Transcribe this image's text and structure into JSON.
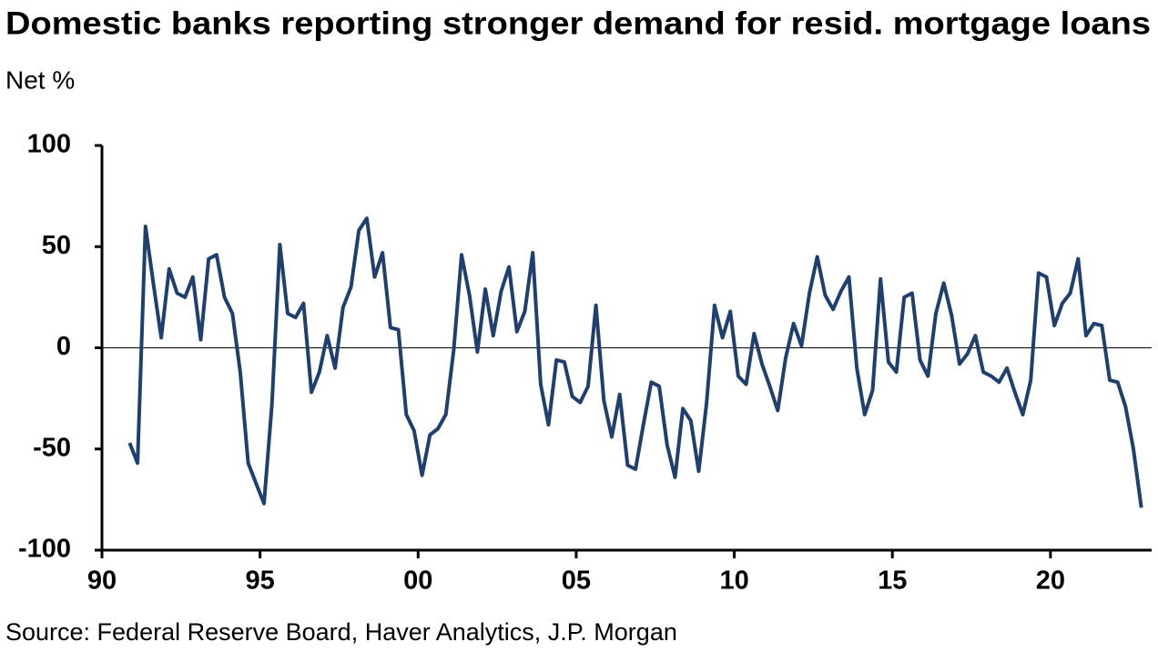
{
  "chart_data": {
    "type": "line",
    "title": "Domestic banks reporting stronger demand for resid. mortgage loans",
    "subtitle": "Net %",
    "source": "Source: Federal Reserve Board, Haver Analytics, J.P. Morgan",
    "x": [
      1990.875,
      1991.125,
      1991.375,
      1991.625,
      1991.875,
      1992.125,
      1992.375,
      1992.625,
      1992.875,
      1993.125,
      1993.375,
      1993.625,
      1993.875,
      1994.125,
      1994.375,
      1994.625,
      1994.875,
      1995.125,
      1995.375,
      1995.625,
      1995.875,
      1996.125,
      1996.375,
      1996.625,
      1996.875,
      1997.125,
      1997.375,
      1997.625,
      1997.875,
      1998.125,
      1998.375,
      1998.625,
      1998.875,
      1999.125,
      1999.375,
      1999.625,
      1999.875,
      2000.125,
      2000.375,
      2000.625,
      2000.875,
      2001.125,
      2001.375,
      2001.625,
      2001.875,
      2002.125,
      2002.375,
      2002.625,
      2002.875,
      2003.125,
      2003.375,
      2003.625,
      2003.875,
      2004.125,
      2004.375,
      2004.625,
      2004.875,
      2005.125,
      2005.375,
      2005.625,
      2005.875,
      2006.125,
      2006.375,
      2006.625,
      2006.875,
      2007.125,
      2007.375,
      2007.625,
      2007.875,
      2008.125,
      2008.375,
      2008.625,
      2008.875,
      2009.125,
      2009.375,
      2009.625,
      2009.875,
      2010.125,
      2010.375,
      2010.625,
      2010.875,
      2011.125,
      2011.375,
      2011.625,
      2011.875,
      2012.125,
      2012.375,
      2012.625,
      2012.875,
      2013.125,
      2013.375,
      2013.625,
      2013.875,
      2014.125,
      2014.375,
      2014.625,
      2014.875,
      2015.125,
      2015.375,
      2015.625,
      2015.875,
      2016.125,
      2016.375,
      2016.625,
      2016.875,
      2017.125,
      2017.375,
      2017.625,
      2017.875,
      2018.125,
      2018.375,
      2018.625,
      2018.875,
      2019.125,
      2019.375,
      2019.625,
      2019.875,
      2020.125,
      2020.375,
      2020.625,
      2020.875,
      2021.125,
      2021.375,
      2021.625,
      2021.875,
      2022.125,
      2022.375,
      2022.625,
      2022.875
    ],
    "series": [
      {
        "color": "#1f3f6e",
        "values": [
          -47,
          -57,
          60,
          32,
          5,
          39,
          27,
          25,
          35,
          4,
          44,
          46,
          25,
          17,
          -12,
          -57,
          -67,
          -77,
          -28,
          51,
          17,
          15,
          22,
          -22,
          -12,
          6,
          -10,
          20,
          30,
          58,
          64,
          35,
          47,
          10,
          9,
          -33,
          -41,
          -63,
          -43,
          -40,
          -33,
          -1,
          46,
          26,
          -2,
          29,
          6,
          28,
          40,
          8,
          18,
          47,
          -18,
          -38,
          -6,
          -7,
          -24,
          -27,
          -19,
          21,
          -26,
          -44,
          -23,
          -58,
          -60,
          -38,
          -17,
          -19,
          -48,
          -64,
          -30,
          -36,
          -61,
          -27,
          21,
          5,
          18,
          -14,
          -18,
          7,
          -8,
          -19,
          -31,
          -5,
          12,
          1,
          27,
          45,
          26,
          19,
          28,
          35,
          -10,
          -33,
          -21,
          34,
          -7,
          -12,
          25,
          27,
          -6,
          -14,
          17,
          32,
          16,
          -8,
          -3,
          6,
          -12,
          -14,
          -17,
          -10,
          -22,
          -33,
          -16,
          37,
          35,
          11,
          22,
          27,
          44,
          6,
          12,
          11,
          -16,
          -17,
          -29,
          -50,
          -79
        ]
      }
    ],
    "xlim": [
      1990,
      2023.2
    ],
    "xticks": [
      {
        "value": 1990,
        "label": "90"
      },
      {
        "value": 1995,
        "label": "95"
      },
      {
        "value": 2000,
        "label": "00"
      },
      {
        "value": 2005,
        "label": "05"
      },
      {
        "value": 2010,
        "label": "10"
      },
      {
        "value": 2015,
        "label": "15"
      },
      {
        "value": 2020,
        "label": "20"
      }
    ],
    "ylim": [
      -100,
      100
    ],
    "yticks": [
      -100,
      -50,
      0,
      50,
      100
    ],
    "zero_line": true
  }
}
